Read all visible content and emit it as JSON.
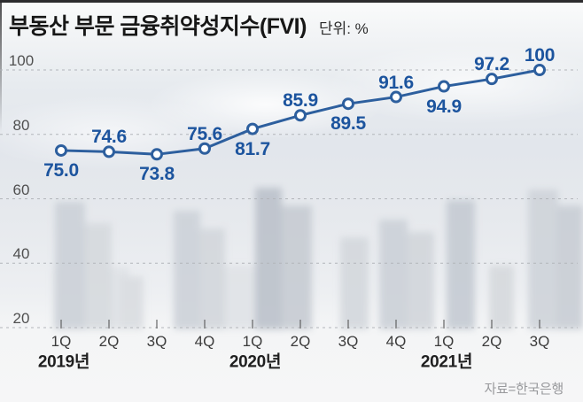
{
  "header": {
    "title": "부동산 부문 금융취약성지수(FVI)",
    "unit": "단위: %"
  },
  "source": {
    "label": "자료=한국은행"
  },
  "colors": {
    "line": "#2d5f9e",
    "marker_fill": "#ffffff",
    "marker_stroke": "#2d5f9e",
    "value_label": "#1c549e",
    "grid": "#b2b5ba",
    "tick": "#4a4a4a",
    "topbar": "#2c2c2e"
  },
  "chart_data": {
    "type": "line",
    "title": "부동산 부문 금융취약성지수(FVI)",
    "unit": "%",
    "categories": [
      "1Q",
      "2Q",
      "3Q",
      "4Q",
      "1Q",
      "2Q",
      "3Q",
      "4Q",
      "1Q",
      "2Q",
      "3Q"
    ],
    "series": [
      {
        "name": "부동산 부문 금융취약성지수(FVI)",
        "values": [
          75.0,
          74.6,
          73.8,
          75.6,
          81.7,
          85.9,
          89.5,
          91.6,
          94.9,
          97.2,
          100
        ]
      }
    ],
    "value_labels": [
      "75.0",
      "74.6",
      "73.8",
      "75.6",
      "81.7",
      "85.9",
      "89.5",
      "91.6",
      "94.9",
      "97.2",
      "100"
    ],
    "value_label_position": [
      "below",
      "above",
      "below",
      "above",
      "below",
      "above",
      "below",
      "above",
      "below",
      "above",
      "above"
    ],
    "year_groups": [
      {
        "label": "2019년",
        "index": 0
      },
      {
        "label": "2020년",
        "index": 4
      },
      {
        "label": "2021년",
        "index": 8
      }
    ],
    "yticks": [
      20,
      40,
      60,
      80,
      100
    ],
    "ylim": [
      20,
      100
    ],
    "grid": "dashed-horizontal",
    "legend": "none"
  }
}
